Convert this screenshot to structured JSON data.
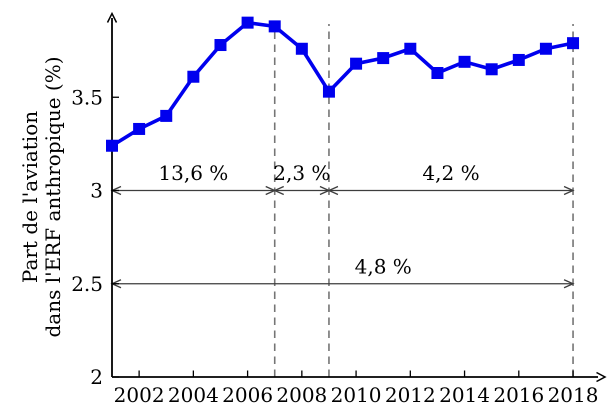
{
  "chart_data": {
    "type": "line",
    "title": "",
    "xlabel": "",
    "ylabel": "Part de l'aviation dans l'ERF anthropique (%)",
    "ylabel_line1": "Part de l'aviation",
    "ylabel_line2": "dans l'ERF anthropique (%)",
    "x": [
      2001,
      2002,
      2003,
      2004,
      2005,
      2006,
      2007,
      2008,
      2009,
      2010,
      2011,
      2012,
      2013,
      2014,
      2015,
      2016,
      2017,
      2018
    ],
    "series": [
      {
        "name": "Part de l'aviation dans l'ERF anthropique (%)",
        "color": "#0000ee",
        "marker": "square",
        "values": [
          3.24,
          3.33,
          3.4,
          3.61,
          3.78,
          3.9,
          3.88,
          3.76,
          3.53,
          3.68,
          3.71,
          3.76,
          3.63,
          3.69,
          3.65,
          3.7,
          3.76,
          3.79
        ]
      }
    ],
    "xlim": [
      2001,
      2019
    ],
    "ylim": [
      2,
      3.97
    ],
    "x_ticks": [
      2002,
      2004,
      2006,
      2008,
      2010,
      2012,
      2014,
      2016,
      2018
    ],
    "y_ticks": [
      {
        "value": 2,
        "label": "2"
      },
      {
        "value": 2.5,
        "label": "2.5"
      },
      {
        "value": 3,
        "label": "3"
      },
      {
        "value": 3.5,
        "label": "3.5"
      }
    ],
    "grid": false,
    "legend": false,
    "dashed_guides_x": [
      2007,
      2009,
      2018
    ],
    "annotations": [
      {
        "label": "13,6 %",
        "x_from": 2001,
        "x_to": 2007,
        "y": 3
      },
      {
        "label": "2,3 %",
        "x_from": 2007,
        "x_to": 2009,
        "y": 3
      },
      {
        "label": "4,2 %",
        "x_from": 2009,
        "x_to": 2018,
        "y": 3
      },
      {
        "label": "4,8 %",
        "x_from": 2001,
        "x_to": 2018,
        "y": 2.5,
        "label_x": 2011
      }
    ]
  },
  "style": {
    "line_color": "#0000ee",
    "marker_color": "#0000ee",
    "axis_color": "#000000",
    "annotation_color": "#3d3d3d",
    "dashed_color": "#757575",
    "text_color": "#000000",
    "background": "#ffffff"
  }
}
